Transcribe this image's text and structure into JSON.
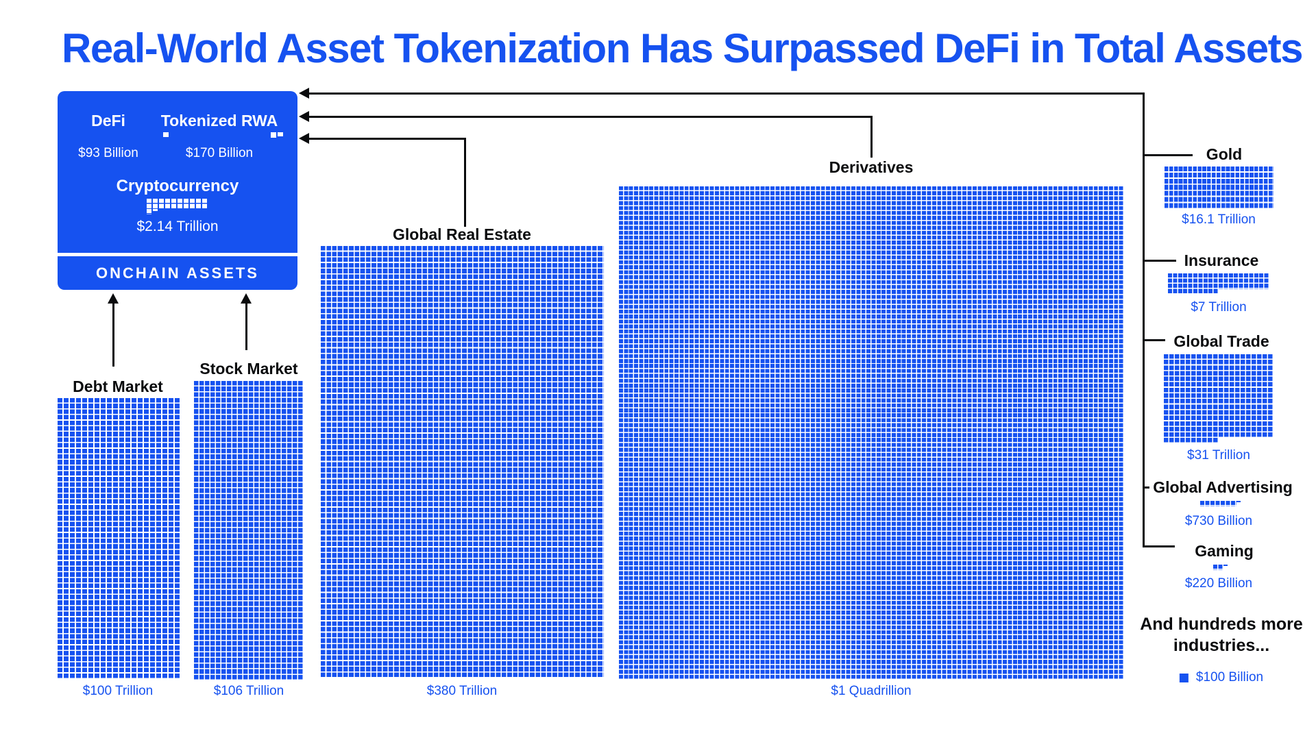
{
  "title": "Real-World Asset Tokenization Has Surpassed DeFi in Total Assets",
  "colors": {
    "blue": "#1652F0",
    "black": "#0A0B0D",
    "white": "#FFFFFF"
  },
  "onchain_panel": {
    "banner": "ONCHAIN ASSETS",
    "defi": {
      "label": "DeFi",
      "value_usd": "$93 Billion"
    },
    "rwa": {
      "label": "Tokenized RWA",
      "value_usd": "$170 Billion"
    },
    "crypto": {
      "label": "Cryptocurrency",
      "value_usd": "$2.14 Trillion"
    }
  },
  "note_more_industries": "And hundreds more industries...",
  "legend": {
    "label": "$100 Billion"
  },
  "chart_data": {
    "type": "waffle",
    "unit_per_square": "$100 Billion",
    "items": [
      {
        "label": "DeFi",
        "value_usd": "$93 Billion",
        "squares": 0.93,
        "group": "onchain"
      },
      {
        "label": "Tokenized RWA",
        "value_usd": "$170 Billion",
        "squares": 1.7,
        "group": "onchain"
      },
      {
        "label": "Cryptocurrency",
        "value_usd": "$2.14 Trillion",
        "squares": 21.4,
        "group": "onchain"
      },
      {
        "label": "Debt Market",
        "value_usd": "$100 Trillion",
        "squares": 1000,
        "group": "offchain"
      },
      {
        "label": "Stock Market",
        "value_usd": "$106 Trillion",
        "squares": 1060,
        "group": "offchain"
      },
      {
        "label": "Global Real Estate",
        "value_usd": "$380 Trillion",
        "squares": 3800,
        "group": "offchain"
      },
      {
        "label": "Derivatives",
        "value_usd": "$1 Quadrillion",
        "squares": 10000,
        "group": "offchain"
      },
      {
        "label": "Gold",
        "value_usd": "$16.1 Trillion",
        "squares": 161,
        "group": "offchain"
      },
      {
        "label": "Insurance",
        "value_usd": "$7 Trillion",
        "squares": 70,
        "group": "offchain"
      },
      {
        "label": "Global Trade",
        "value_usd": "$31 Trillion",
        "squares": 310,
        "group": "offchain"
      },
      {
        "label": "Global Advertising",
        "value_usd": "$730 Billion",
        "squares": 7.3,
        "group": "offchain"
      },
      {
        "label": "Gaming",
        "value_usd": "$220 Billion",
        "squares": 2.2,
        "group": "offchain"
      }
    ]
  }
}
